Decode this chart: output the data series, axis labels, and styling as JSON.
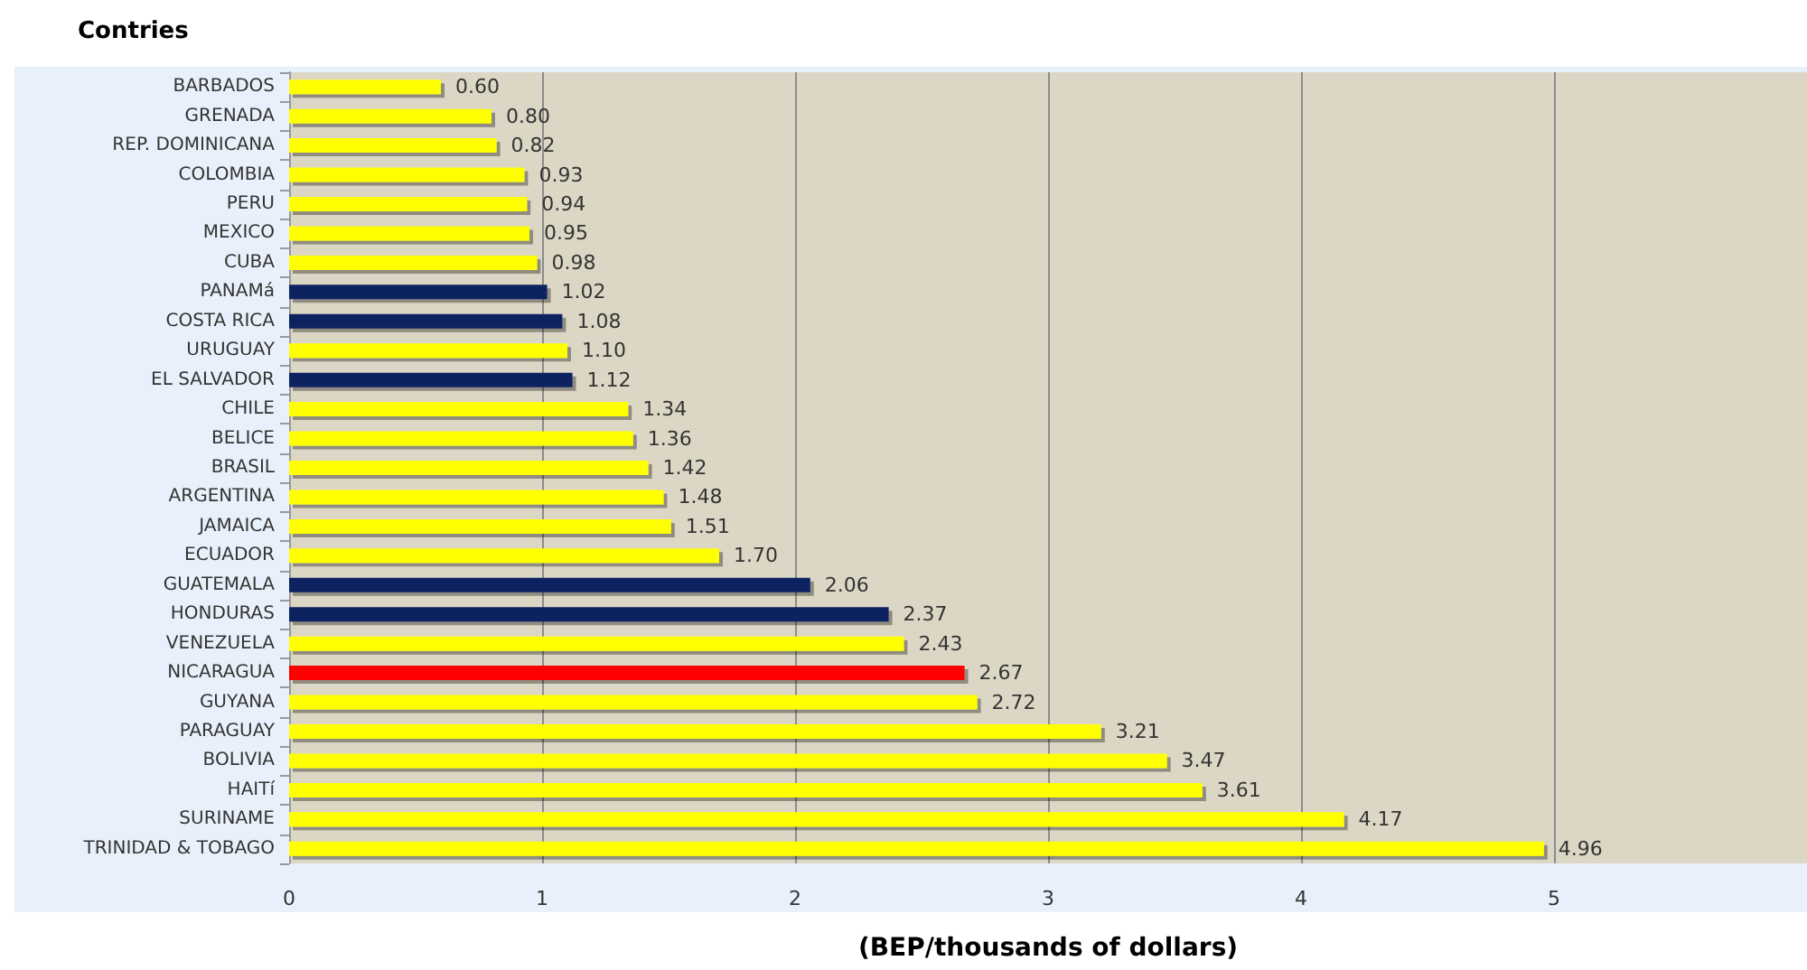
{
  "chart_data": {
    "type": "bar",
    "orientation": "horizontal",
    "title": "Contries",
    "xlabel": "(BEP/thousands of dollars)",
    "categories": [
      "BARBADOS",
      "GRENADA",
      "REP. DOMINICANA",
      "COLOMBIA",
      "PERU",
      "MEXICO",
      "CUBA",
      "PANAMá",
      "COSTA RICA",
      "URUGUAY",
      "EL SALVADOR",
      "CHILE",
      "BELICE",
      "BRASIL",
      "ARGENTINA",
      "JAMAICA",
      "ECUADOR",
      "GUATEMALA",
      "HONDURAS",
      "VENEZUELA",
      "NICARAGUA",
      "GUYANA",
      "PARAGUAY",
      "BOLIVIA",
      "HAITí",
      "SURINAME",
      "TRINIDAD & TOBAGO"
    ],
    "values": [
      0.6,
      0.8,
      0.82,
      0.93,
      0.94,
      0.95,
      0.98,
      1.02,
      1.08,
      1.1,
      1.12,
      1.34,
      1.36,
      1.42,
      1.48,
      1.51,
      1.7,
      2.06,
      2.37,
      2.43,
      2.67,
      2.72,
      3.21,
      3.47,
      3.61,
      4.17,
      4.96
    ],
    "value_labels": [
      "0.60",
      "0.80",
      "0.82",
      "0.93",
      "0.94",
      "0.95",
      "0.98",
      "1.02",
      "1.08",
      "1.10",
      "1.12",
      "1.34",
      "1.36",
      "1.42",
      "1.48",
      "1.51",
      "1.70",
      "2.06",
      "2.37",
      "2.43",
      "2.67",
      "2.72",
      "3.21",
      "3.47",
      "3.61",
      "4.17",
      "4.96"
    ],
    "colors": [
      "#ffff00",
      "#ffff00",
      "#ffff00",
      "#ffff00",
      "#ffff00",
      "#ffff00",
      "#ffff00",
      "#0d2160",
      "#0d2160",
      "#ffff00",
      "#0d2160",
      "#ffff00",
      "#ffff00",
      "#ffff00",
      "#ffff00",
      "#ffff00",
      "#ffff00",
      "#0d2160",
      "#0d2160",
      "#ffff00",
      "#ff0000",
      "#ffff00",
      "#ffff00",
      "#ffff00",
      "#ffff00",
      "#ffff00",
      "#ffff00"
    ],
    "xlim": [
      0,
      6
    ],
    "xticks": [
      0,
      1,
      2,
      3,
      4,
      5
    ],
    "grid": "x"
  }
}
